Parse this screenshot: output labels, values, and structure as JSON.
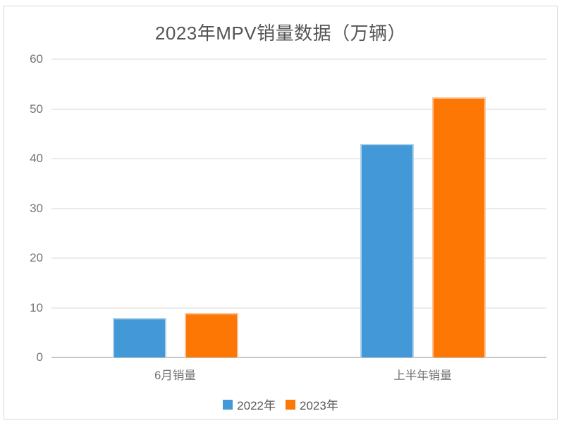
{
  "chart_data": {
    "type": "bar",
    "title": "2023年MPV销量数据（万辆）",
    "categories": [
      "6月销量",
      "上半年销量"
    ],
    "series": [
      {
        "name": "2022年",
        "color": "#4399D8",
        "border_color": "#b0d2ec",
        "values": [
          8.0,
          43.0
        ]
      },
      {
        "name": "2023年",
        "color": "#FC7703",
        "border_color": "#fec59a",
        "values": [
          8.9,
          52.3
        ]
      }
    ],
    "ylabel": "",
    "xlabel": "",
    "ylim": [
      0,
      60
    ],
    "yticks": [
      0,
      10,
      20,
      30,
      40,
      50,
      60
    ],
    "grid": true,
    "legend_position": "bottom",
    "colors": {
      "grid_line": "#ebebeb",
      "baseline": "#c8c8c8",
      "axis_text": "#737373",
      "title_text": "#555555",
      "legend_text": "#595959",
      "card_border": "#d8d8d8",
      "background": "#ffffff"
    }
  }
}
